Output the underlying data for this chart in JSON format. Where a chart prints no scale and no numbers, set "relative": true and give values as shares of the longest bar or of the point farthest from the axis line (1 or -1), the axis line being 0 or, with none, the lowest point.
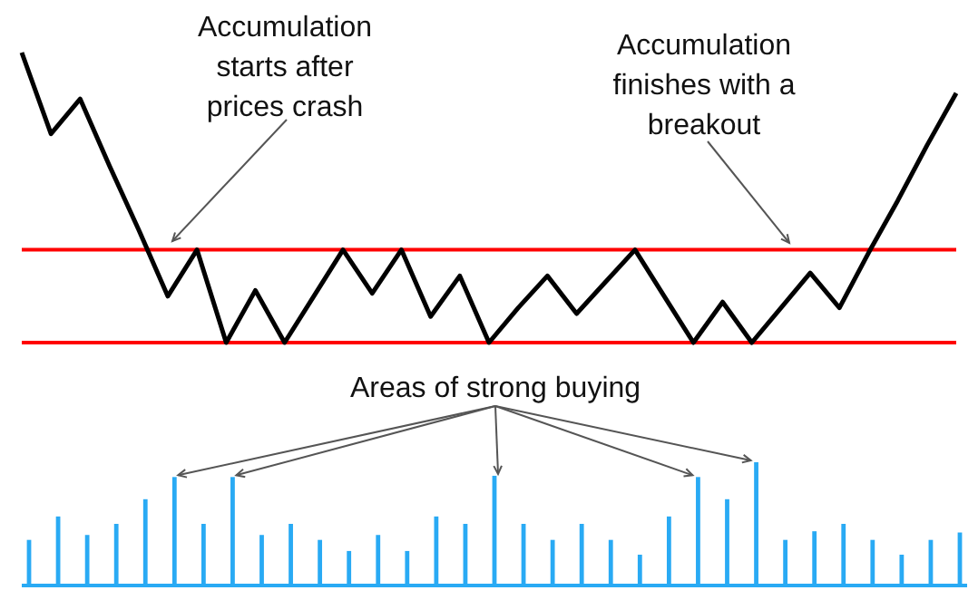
{
  "chart_data": [
    {
      "type": "line",
      "relative": true,
      "marker": "none",
      "line_style": "solid",
      "categories": [
        null,
        null,
        null,
        null,
        null,
        null,
        null,
        null,
        null,
        null,
        null,
        null,
        null,
        null,
        null,
        null,
        null,
        null,
        null,
        null,
        null,
        null,
        null,
        null,
        null,
        null,
        null,
        null,
        null,
        null,
        null,
        null,
        null
      ],
      "series": [
        {
          "color": "#000000",
          "values": [
            1,
            0.72,
            0.84,
            0.61,
            0.39,
            0.16,
            0.32,
            0,
            0.18,
            0,
            0.16,
            0.32,
            0.17,
            0.32,
            0.09,
            0.23,
            0,
            0.12,
            0.23,
            0.1,
            0.21,
            0.32,
            0.16,
            0,
            0.14,
            0,
            0.12,
            0.24,
            0.12,
            0.31,
            0.49,
            0.68,
            0.86
          ]
        }
      ],
      "ref_lines": [
        {
          "axis": "y",
          "value": 0.32,
          "color": "#ff0000"
        },
        {
          "axis": "y",
          "value": 0,
          "color": "#ff0000"
        }
      ],
      "annotations": [
        "Accumulation\nstarts after\nprices crash",
        "Accumulation\nfinishes with a\nbreakout"
      ]
    },
    {
      "type": "bar",
      "relative": true,
      "color": "#29aaf4",
      "categories": [
        null,
        null,
        null,
        null,
        null,
        null,
        null,
        null,
        null,
        null,
        null,
        null,
        null,
        null,
        null,
        null,
        null,
        null,
        null,
        null,
        null,
        null,
        null,
        null,
        null,
        null,
        null,
        null,
        null,
        null,
        null,
        null,
        null
      ],
      "values": [
        0.37,
        0.56,
        0.41,
        0.5,
        0.7,
        0.88,
        0.5,
        0.88,
        0.41,
        0.5,
        0.37,
        0.28,
        0.41,
        0.28,
        0.56,
        0.5,
        0.89,
        0.5,
        0.37,
        0.5,
        0.37,
        0.25,
        0.56,
        0.88,
        0.7,
        1,
        0.37,
        0.44,
        0.5,
        0.37,
        0.25,
        0.37,
        0.43
      ],
      "annotations": [
        "Areas of strong buying"
      ]
    }
  ]
}
